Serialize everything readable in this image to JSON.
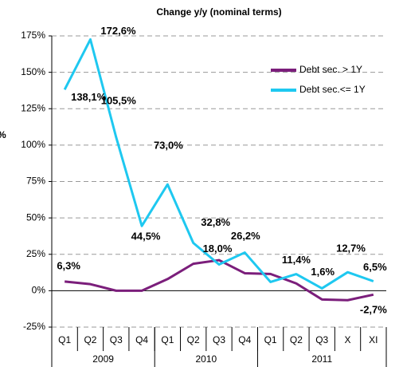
{
  "chart_data": {
    "type": "line",
    "title": "Change y/y (nominal terms)",
    "y_label": "%",
    "categories": [
      "Q1",
      "Q2",
      "Q3",
      "Q4",
      "Q1",
      "Q2",
      "Q3",
      "Q4",
      "Q1",
      "Q2",
      "Q3",
      "X",
      "XI"
    ],
    "groups": [
      {
        "label": "2009",
        "span": 4
      },
      {
        "label": "2010",
        "span": 4
      },
      {
        "label": "2011",
        "span": 5
      }
    ],
    "series": [
      {
        "name": "Debt sec. > 1Y",
        "color": "#7b1e7b",
        "values": [
          6.3,
          4.5,
          0,
          0,
          8,
          18.5,
          21,
          12,
          11.5,
          5,
          -6,
          -6.5,
          -2.7
        ],
        "value_labels": [
          "6,3%",
          null,
          null,
          null,
          null,
          null,
          null,
          null,
          null,
          null,
          null,
          null,
          "-2,7%"
        ]
      },
      {
        "name": "Debt sec.<= 1Y",
        "color": "#1ec8f0",
        "values": [
          138.1,
          172.6,
          105.5,
          44.5,
          73.0,
          32.8,
          18.0,
          26.2,
          6,
          11.4,
          1.6,
          12.7,
          6.5
        ],
        "value_labels": [
          "138,1%",
          "172,6%",
          "105,5%",
          "44,5%",
          "73,0%",
          "32,8%",
          "18,0%",
          "26,2%",
          null,
          "11,4%",
          "1,6%",
          "12,7%",
          "6,5%"
        ]
      }
    ],
    "ylim": [
      -25,
      175
    ],
    "yticks": [
      {
        "value": -25,
        "label": "-25%"
      },
      {
        "value": 0,
        "label": "0%"
      },
      {
        "value": 25,
        "label": "25%"
      },
      {
        "value": 50,
        "label": "50%"
      },
      {
        "value": 75,
        "label": "75%"
      },
      {
        "value": 100,
        "label": "100%"
      },
      {
        "value": 125,
        "label": "125%"
      },
      {
        "value": 150,
        "label": "150%"
      },
      {
        "value": 175,
        "label": "175%"
      }
    ],
    "grid": true
  }
}
